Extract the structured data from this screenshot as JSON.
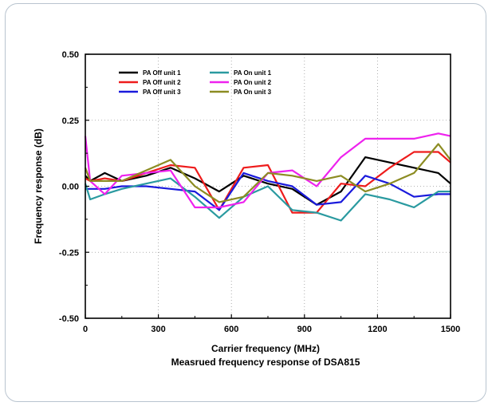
{
  "chart_data": {
    "type": "line",
    "title": "",
    "caption": "Measrued frequency response of DSA815",
    "xlabel": "Carrier frequency (MHz)",
    "ylabel": "Frequency response (dB)",
    "xlim": [
      0,
      1500
    ],
    "ylim": [
      -0.5,
      0.5
    ],
    "x_ticks": [
      0,
      300,
      600,
      900,
      1200,
      1500
    ],
    "y_ticks": [
      -0.5,
      -0.25,
      0.0,
      0.25,
      0.5
    ],
    "x_tick_labels": [
      "0",
      "300",
      "600",
      "900",
      "1200",
      "1500"
    ],
    "y_tick_labels": [
      "-0.50",
      "-0.25",
      "0.00",
      "0.25",
      "0.50"
    ],
    "grid": "dotted",
    "legend_position": "top-left",
    "series": [
      {
        "name": "PA Off  unit 1",
        "color": "#000000",
        "x": [
          0,
          20,
          80,
          150,
          250,
          350,
          450,
          550,
          650,
          750,
          850,
          950,
          1050,
          1150,
          1250,
          1350,
          1450,
          1500
        ],
        "y": [
          0.04,
          0.02,
          0.05,
          0.02,
          0.04,
          0.07,
          0.03,
          -0.02,
          0.04,
          0.01,
          -0.01,
          -0.07,
          -0.02,
          0.11,
          0.09,
          0.07,
          0.05,
          0.01
        ]
      },
      {
        "name": "PA Off  unit 2",
        "color": "#ee1c1c",
        "x": [
          0,
          20,
          80,
          150,
          250,
          350,
          450,
          550,
          650,
          750,
          850,
          950,
          1050,
          1150,
          1250,
          1350,
          1450,
          1500
        ],
        "y": [
          0.03,
          0.02,
          0.03,
          0.02,
          0.05,
          0.08,
          0.07,
          -0.09,
          0.07,
          0.08,
          -0.1,
          -0.1,
          0.01,
          0.0,
          0.07,
          0.13,
          0.13,
          0.09
        ]
      },
      {
        "name": "PA Off  unit 3",
        "color": "#1a1adc",
        "x": [
          0,
          20,
          80,
          150,
          250,
          350,
          450,
          550,
          650,
          750,
          850,
          950,
          1050,
          1150,
          1250,
          1350,
          1450,
          1500
        ],
        "y": [
          -0.01,
          -0.01,
          -0.01,
          0.0,
          0.0,
          -0.01,
          -0.02,
          -0.09,
          0.05,
          0.02,
          0.0,
          -0.07,
          -0.06,
          0.04,
          0.01,
          -0.04,
          -0.03,
          -0.03
        ]
      },
      {
        "name": "PA On  unit 1",
        "color": "#2a9aa0",
        "x": [
          0,
          20,
          80,
          150,
          250,
          350,
          450,
          550,
          650,
          750,
          850,
          950,
          1050,
          1150,
          1250,
          1350,
          1450,
          1500
        ],
        "y": [
          0.01,
          -0.05,
          -0.03,
          -0.01,
          0.01,
          0.03,
          -0.04,
          -0.12,
          -0.04,
          0.0,
          -0.09,
          -0.1,
          -0.13,
          -0.03,
          -0.05,
          -0.08,
          -0.02,
          -0.02
        ]
      },
      {
        "name": "PA On  unit 2",
        "color": "#ee22ee",
        "x": [
          0,
          20,
          80,
          150,
          250,
          350,
          450,
          550,
          650,
          750,
          850,
          950,
          1050,
          1150,
          1250,
          1350,
          1450,
          1500
        ],
        "y": [
          0.19,
          0.02,
          -0.03,
          0.04,
          0.05,
          0.06,
          -0.08,
          -0.08,
          -0.06,
          0.05,
          0.06,
          0.0,
          0.11,
          0.18,
          0.18,
          0.18,
          0.2,
          0.19
        ]
      },
      {
        "name": "PA On  unit 3",
        "color": "#8c8c22",
        "x": [
          0,
          20,
          80,
          150,
          250,
          350,
          450,
          550,
          650,
          750,
          850,
          950,
          1050,
          1150,
          1250,
          1350,
          1450,
          1500
        ],
        "y": [
          0.07,
          0.02,
          0.02,
          0.02,
          0.06,
          0.1,
          0.0,
          -0.06,
          -0.04,
          0.05,
          0.04,
          0.02,
          0.04,
          -0.02,
          0.01,
          0.05,
          0.16,
          0.1
        ]
      }
    ]
  }
}
